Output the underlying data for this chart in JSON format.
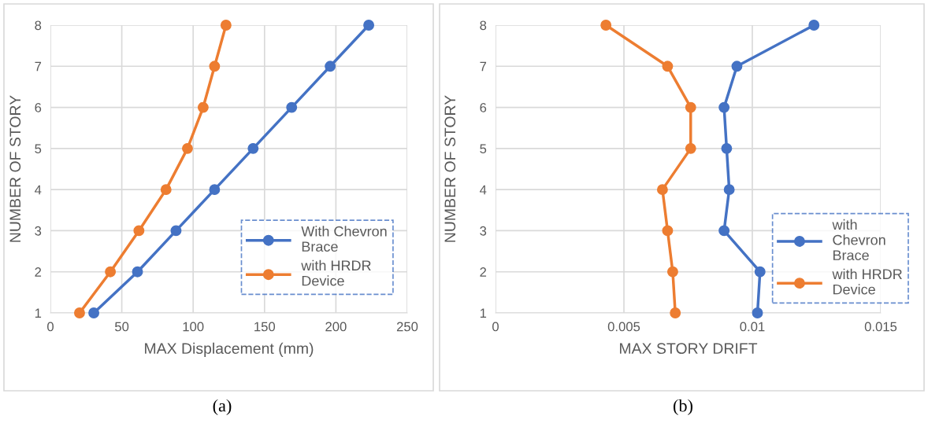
{
  "chart_data": [
    {
      "type": "line",
      "xlabel": "MAX Displacement (mm)",
      "ylabel": "NUMBER OF STORY",
      "annotations": [
        "(a)"
      ],
      "xlim": [
        0,
        250
      ],
      "xticks": [
        0,
        50,
        100,
        150,
        200,
        250
      ],
      "ylim": [
        1,
        8
      ],
      "yticks": [
        1,
        2,
        3,
        4,
        5,
        6,
        7,
        8
      ],
      "grid": true,
      "legend": "bottom right",
      "marker": "circle",
      "line_style": "solid",
      "series": [
        {
          "name": "With Chevron Brace",
          "color": "#4472c4",
          "x": [
            30.4,
            61,
            88,
            115,
            142,
            169,
            196,
            223
          ],
          "values": [
            1,
            2,
            3,
            4,
            5,
            6,
            7,
            8
          ]
        },
        {
          "name": "with HRDR Device",
          "color": "#ed7d31",
          "x": [
            20.4,
            42,
            62,
            81,
            96,
            107,
            115,
            123
          ],
          "values": [
            1,
            2,
            3,
            4,
            5,
            6,
            7,
            8
          ]
        }
      ]
    },
    {
      "type": "line",
      "xlabel": "MAX STORY DRIFT",
      "ylabel": "NUMBER OF STORY",
      "annotations": [
        "(b)"
      ],
      "xlim": [
        0,
        0.015
      ],
      "xticks": [
        0,
        0.005,
        0.01,
        0.015
      ],
      "ylim": [
        1,
        8
      ],
      "yticks": [
        1,
        2,
        3,
        4,
        5,
        6,
        7,
        8
      ],
      "grid": true,
      "legend": "right",
      "marker": "circle",
      "line_style": "solid",
      "series": [
        {
          "name": "with Chevron Brace",
          "color": "#4472c4",
          "x": [
            0.0102,
            0.0103,
            0.0089,
            0.0091,
            0.009,
            0.0089,
            0.0094,
            0.0124
          ],
          "values": [
            1,
            2,
            3,
            4,
            5,
            6,
            7,
            8
          ]
        },
        {
          "name": "with HRDR Device",
          "color": "#ed7d31",
          "x": [
            0.007,
            0.0069,
            0.0067,
            0.0065,
            0.0076,
            0.0076,
            0.0067,
            0.0043
          ],
          "values": [
            1,
            2,
            3,
            4,
            5,
            6,
            7,
            8
          ]
        }
      ]
    }
  ]
}
